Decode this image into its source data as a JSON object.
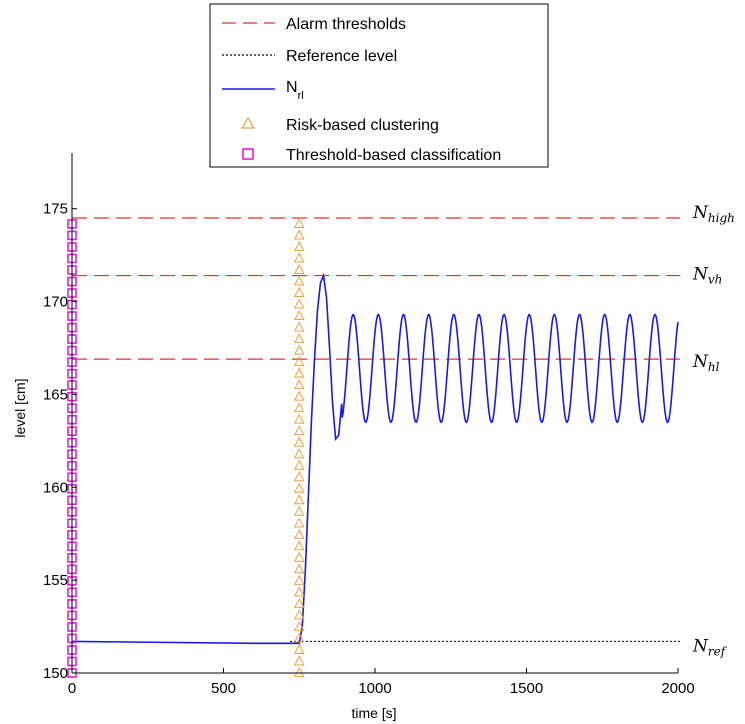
{
  "chart_data": {
    "type": "line",
    "xlabel": "time [s]",
    "ylabel": "level [cm]",
    "xlim": [
      0,
      2000
    ],
    "ylim": [
      150,
      178
    ],
    "xticks": [
      0,
      500,
      1000,
      1500,
      2000
    ],
    "yticks": [
      150,
      155,
      160,
      165,
      170,
      175
    ],
    "grid": false,
    "legend_position": "top-center",
    "legend": [
      {
        "label": "Alarm thresholds",
        "style": "dashed",
        "color": "#e03030"
      },
      {
        "label": "Reference level",
        "style": "dotted",
        "color": "#000000"
      },
      {
        "label_main": "N",
        "label_sub": "rl",
        "style": "solid",
        "color": "#1a1adf"
      },
      {
        "label": "Risk-based clustering",
        "style": "triangle",
        "color": "#f0a040"
      },
      {
        "label": "Threshold-based classification",
        "style": "square",
        "color": "#e020e0"
      }
    ],
    "thresholds": [
      {
        "name_main": "N",
        "name_sub": "high",
        "y": 174.5
      },
      {
        "name_main": "N",
        "name_sub": "vh",
        "y": 171.4
      },
      {
        "name_main": "N",
        "name_sub": "hl",
        "y": 166.9
      }
    ],
    "reference": {
      "name_main": "N",
      "name_sub": "ref",
      "y": 151.7
    },
    "series": [
      {
        "style": "solid",
        "color": "#1a1adf",
        "x": [
          0,
          600,
          750,
          760,
          770,
          780,
          790,
          800,
          810,
          820,
          830,
          840,
          850,
          860,
          870,
          880,
          890
        ],
        "y": [
          151.7,
          151.6,
          151.6,
          152.5,
          155.5,
          159.5,
          163.5,
          166.8,
          169.5,
          171.0,
          171.4,
          170.2,
          167.5,
          164.5,
          162.6,
          162.8,
          164.5
        ],
        "oscillation": {
          "x_start": 890,
          "x_end": 2000,
          "period": 83,
          "mean": 166.4,
          "amplitude": 2.9,
          "first_peak_x": 928
        }
      }
    ],
    "markers": [
      {
        "style": "triangle",
        "color": "#f0a040",
        "x": 750,
        "y_start": 150,
        "y_end": 174.3,
        "step": 0.62
      },
      {
        "style": "square",
        "color": "#e020e0",
        "x": 0,
        "y_start": 150,
        "y_end": 174.3,
        "step": 0.62
      }
    ]
  }
}
